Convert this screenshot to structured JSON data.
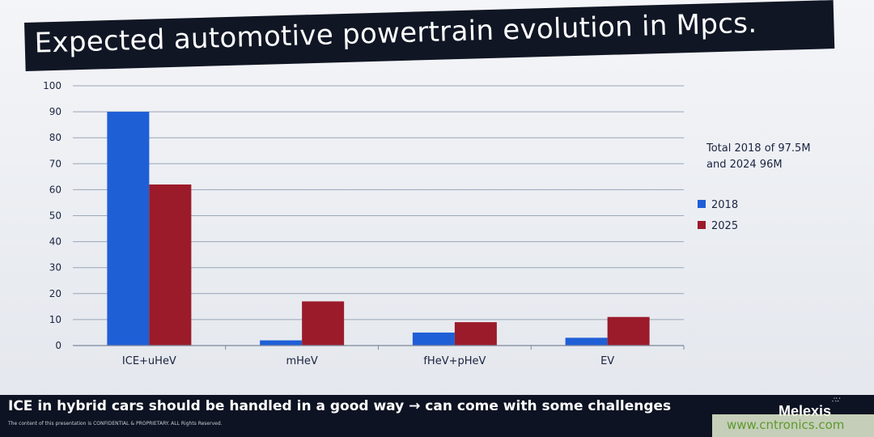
{
  "slide": {
    "title": "Expected automotive powertrain evolution in Mpcs.",
    "annotation_line1": "Total 2018 of 97.5M",
    "annotation_line2": "and 2024 96M",
    "footer_text": "ICE in hybrid cars should be handled in a good way → can come with some challenges",
    "confidential_note": "The content of this presentation is CONFIDENTIAL & PROPRIETARY. ALL Rights Reserved.",
    "logo": "Melexis",
    "watermark": "www.cntronics.com"
  },
  "chart_data": {
    "type": "bar",
    "title": "",
    "xlabel": "",
    "ylabel": "",
    "categories": [
      "ICE+uHeV",
      "mHeV",
      "fHeV+pHeV",
      "EV"
    ],
    "series": [
      {
        "name": "2018",
        "values": [
          90,
          2,
          5,
          3
        ],
        "color": "#1f5fd6"
      },
      {
        "name": "2025",
        "values": [
          62,
          17,
          9,
          11
        ],
        "color": "#9b1b2a"
      }
    ],
    "ylim": [
      0,
      100
    ],
    "yticks": [
      0,
      10,
      20,
      30,
      40,
      50,
      60,
      70,
      80,
      90,
      100
    ],
    "grid": true,
    "legend_position": "right"
  }
}
